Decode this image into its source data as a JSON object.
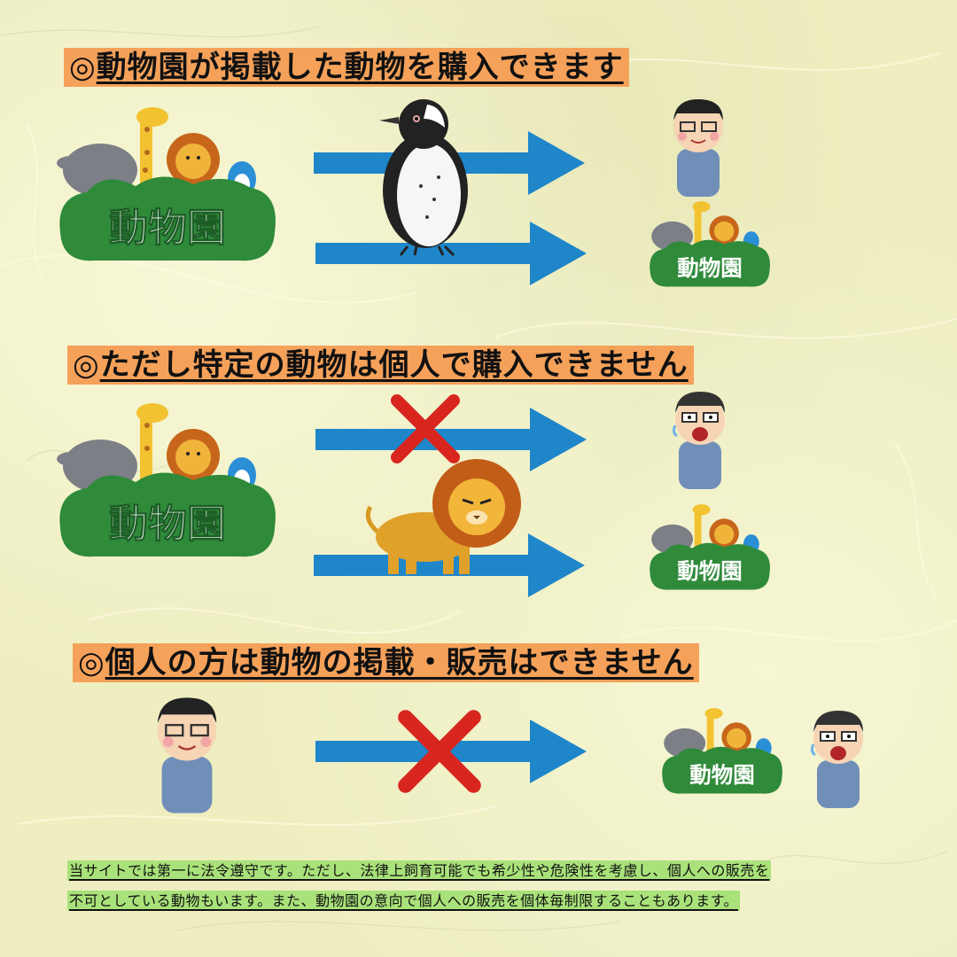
{
  "headings": {
    "h1": "動物園が掲載した動物を購入できます",
    "h2": "ただし特定の動物は個人で購入できません",
    "h3": "個人の方は動物の掲載・販売はできません",
    "mark": "◎"
  },
  "zoo_sign_label": "動物園",
  "footnote": {
    "line1": "当サイトでは第一に法令遵守です。ただし、法律上飼育可能でも希少性や危険性を考慮し、個人への販売を",
    "line2": "不可としている動物もいます。また、動物園の意向で個人への販売を個体毎制限することもあります。"
  },
  "colors": {
    "arrow": "#1f86c9",
    "cross": "#d8261f",
    "heading_bg": "#f5a15a",
    "note_bg": "#a9e27a",
    "bush": "#2f8a3a"
  },
  "icons": [
    "zoo-sign-icon",
    "penguin-icon",
    "lion-icon",
    "person-happy-icon",
    "person-shocked-icon",
    "right-arrow-icon",
    "cross-mark-icon"
  ]
}
